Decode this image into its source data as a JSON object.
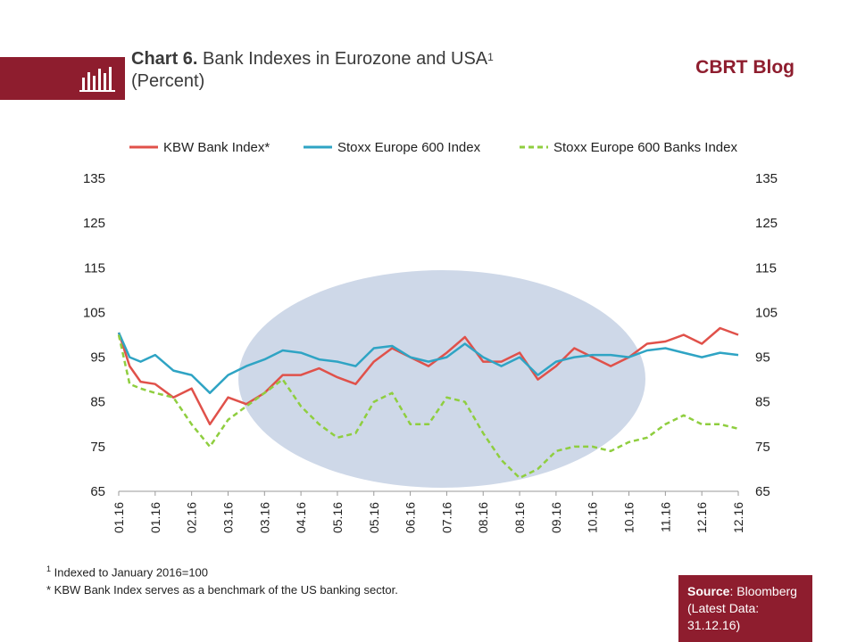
{
  "header": {
    "title_bold": "Chart 6.",
    "title_rest": " Bank Indexes in Eurozone and USA",
    "title_sup": "1",
    "subtitle": "(Percent)",
    "brand": "CBRT Blog"
  },
  "footnotes": {
    "note1_marker": "1",
    "note1_text": " Indexed to January 2016=100",
    "note2": "* KBW Bank Index serves as a benchmark of the US banking sector."
  },
  "source": {
    "label": "Source",
    "value": ": Bloomberg",
    "latest": "(Latest Data: 31.12.16)"
  },
  "colors": {
    "brand": "#8e1d2e",
    "kbw": "#e0514a",
    "stoxx": "#2fa4c4",
    "banks": "#8fce3f",
    "ellipse": "#c5d1e4"
  },
  "chart_data": {
    "type": "line",
    "title": "Bank Indexes in Eurozone and USA",
    "ylim": [
      65,
      135
    ],
    "y_ticks": [
      65,
      75,
      85,
      95,
      105,
      115,
      125,
      135
    ],
    "x_ticks": [
      "01.16",
      "01.16",
      "02.16",
      "03.16",
      "03.16",
      "04.16",
      "05.16",
      "05.16",
      "06.16",
      "07.16",
      "08.16",
      "08.16",
      "09.16",
      "10.16",
      "10.16",
      "11.16",
      "12.16",
      "12.16"
    ],
    "legend_position": "top",
    "series": [
      {
        "name": "KBW Bank Index*",
        "style": "solid",
        "x": [
          0,
          0.3,
          0.6,
          1,
          1.5,
          2,
          2.5,
          3,
          3.5,
          4,
          4.5,
          5,
          5.5,
          6,
          6.5,
          7,
          7.5,
          8,
          8.5,
          9,
          9.5,
          10,
          10.5,
          11,
          11.5,
          12,
          12.5,
          13,
          13.5,
          14,
          14.5,
          15,
          15.5,
          16,
          16.5,
          17
        ],
        "values": [
          100.5,
          93,
          89.5,
          89,
          86,
          88,
          80,
          86,
          84.5,
          87,
          91,
          91,
          92.5,
          90.5,
          89,
          94,
          97,
          95,
          93,
          96,
          99.5,
          94,
          94,
          96,
          90,
          93,
          97,
          95,
          93,
          95,
          98,
          98.5,
          100,
          98,
          101.5,
          100
        ]
      },
      {
        "name": "Stoxx Europe 600 Index",
        "style": "solid",
        "x": [
          0,
          0.3,
          0.6,
          1,
          1.5,
          2,
          2.5,
          3,
          3.5,
          4,
          4.5,
          5,
          5.5,
          6,
          6.5,
          7,
          7.5,
          8,
          8.5,
          9,
          9.5,
          10,
          10.5,
          11,
          11.5,
          12,
          12.5,
          13,
          13.5,
          14,
          14.5,
          15,
          15.5,
          16,
          16.5,
          17
        ],
        "values": [
          100.5,
          95,
          94,
          95.5,
          92,
          91,
          87,
          91,
          93,
          94.5,
          96.5,
          96,
          94.5,
          94,
          93,
          97,
          97.5,
          95,
          94,
          95,
          98,
          95,
          93,
          95,
          91,
          94,
          95,
          95.5,
          95.5,
          95,
          96.5,
          97,
          96,
          95,
          96,
          95.5
        ]
      },
      {
        "name": "Stoxx Europe 600 Banks Index",
        "style": "dashed",
        "x": [
          0,
          0.3,
          0.6,
          1,
          1.5,
          2,
          2.5,
          3,
          3.5,
          4,
          4.5,
          5,
          5.5,
          6,
          6.5,
          7,
          7.5,
          8,
          8.5,
          9,
          9.5,
          10,
          10.5,
          11,
          11.5,
          12,
          12.5,
          13,
          13.5,
          14,
          14.5,
          15,
          15.5,
          16,
          16.5,
          17
        ],
        "values": [
          100,
          89,
          88,
          87,
          86,
          80,
          75,
          81,
          84,
          87,
          90,
          84,
          80,
          77,
          78,
          85,
          87,
          80,
          80,
          86,
          85,
          78,
          72,
          68,
          70,
          74,
          75,
          75,
          74,
          76,
          77,
          80,
          82,
          80,
          80,
          79
        ]
      }
    ]
  }
}
